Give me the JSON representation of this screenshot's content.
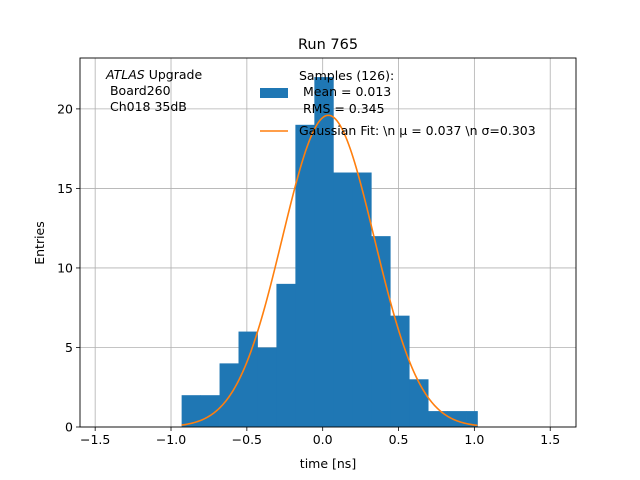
{
  "chart_data": {
    "type": "bar",
    "title": "Run 765",
    "xlabel": "time [ns]",
    "ylabel": "Entries",
    "xlim": [
      -1.6,
      1.67
    ],
    "ylim": [
      0,
      23.2
    ],
    "xticks": [
      -1.5,
      -1.0,
      -0.5,
      0.0,
      0.5,
      1.0,
      1.5
    ],
    "xtick_labels": [
      "−1.5",
      "−1.0",
      "−0.5",
      "0.0",
      "0.5",
      "1.0",
      "1.5"
    ],
    "yticks": [
      0,
      5,
      10,
      15,
      20
    ],
    "ytick_labels": [
      "0",
      "5",
      "10",
      "15",
      "20"
    ],
    "grid": true,
    "histogram": {
      "bin_edges": [
        -0.93,
        -0.805,
        -0.68,
        -0.555,
        -0.43,
        -0.305,
        -0.18,
        -0.055,
        0.07,
        0.195,
        0.32,
        0.445,
        0.57,
        0.695,
        0.82,
        0.945,
        1.02
      ],
      "counts": [
        2,
        2,
        4,
        6,
        5,
        9,
        19,
        22,
        16,
        16,
        12,
        7,
        3,
        1,
        1,
        1
      ],
      "color": "#1f77b4"
    },
    "gaussian_fit": {
      "mu": 0.037,
      "sigma": 0.303,
      "amplitude": 19.6,
      "x_range": [
        -0.93,
        1.02
      ],
      "color": "#ff7f0e"
    },
    "annotation": {
      "atlas_italic": "ATLAS",
      "atlas_rest": " Upgrade",
      "line2": " Board260",
      "line3": " Ch018 35dB"
    },
    "legend": {
      "placement": "top-center",
      "histogram_label": [
        "Samples (126):",
        " Mean = 0.013",
        " RMS = 0.345"
      ],
      "fit_label": "Gaussian Fit: \\n μ = 0.037 \\n σ=0.303"
    }
  }
}
